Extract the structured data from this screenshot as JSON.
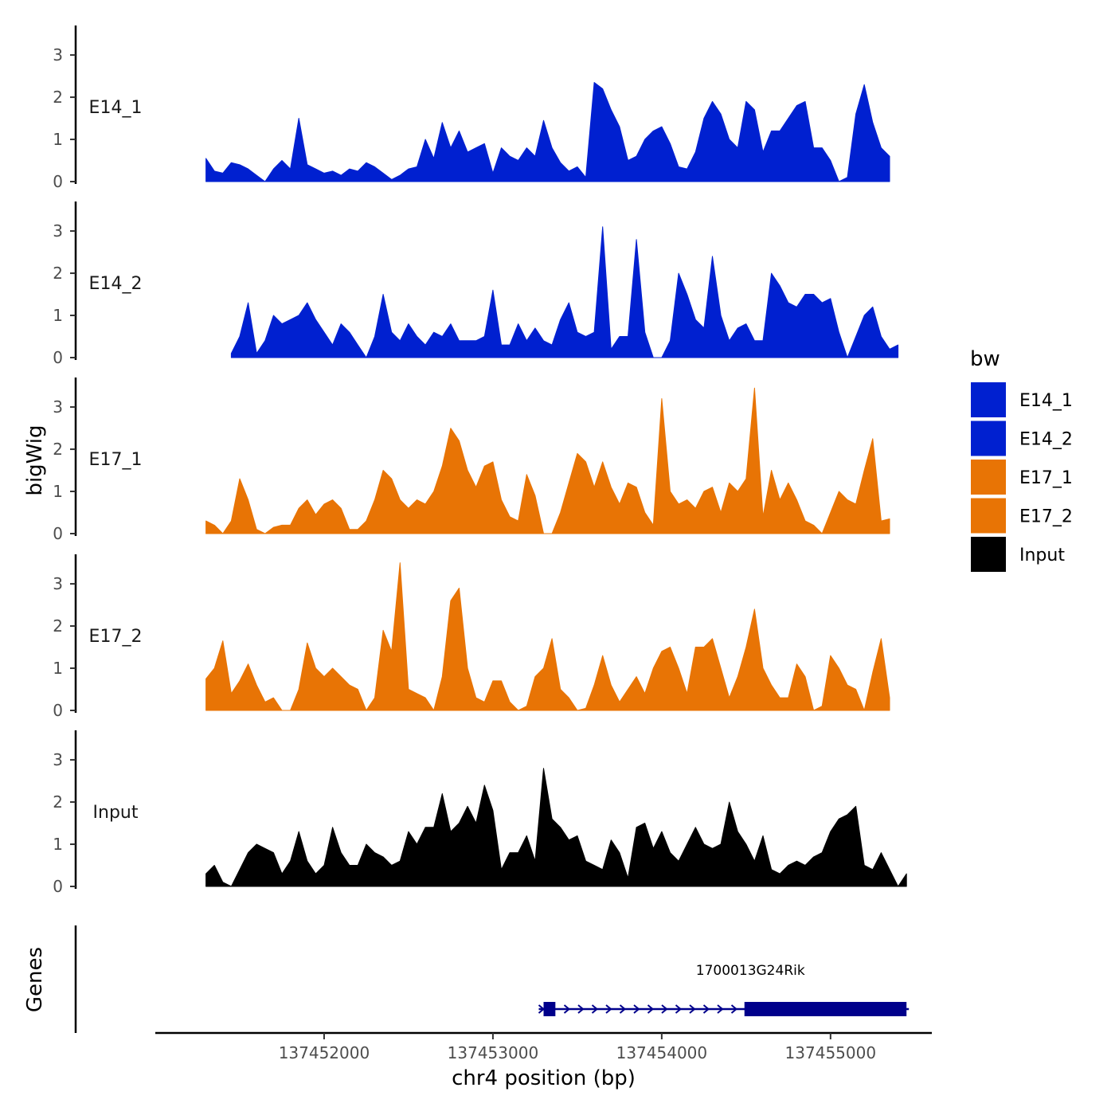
{
  "chart_data": {
    "type": "area",
    "ylabel": "bigWig",
    "xlabel": "chr4 position (bp)",
    "ylim": [
      0,
      3.7
    ],
    "yticks": [
      0,
      1,
      2,
      3
    ],
    "xlim": [
      137451000,
      137455600
    ],
    "xticks": [
      137452000,
      137453000,
      137454000,
      137455000
    ],
    "x_start": 137451300,
    "x_step": 50,
    "legend": {
      "title": "bw",
      "position": "right",
      "entries": [
        {
          "label": "E14_1",
          "color": "#0020D0"
        },
        {
          "label": "E14_2",
          "color": "#0020D0"
        },
        {
          "label": "E17_1",
          "color": "#E87405"
        },
        {
          "label": "E17_2",
          "color": "#E87405"
        },
        {
          "label": "Input",
          "color": "#000000"
        }
      ]
    },
    "series": [
      {
        "name": "E14_1",
        "color": "#0020D0",
        "values": [
          0.55,
          0.25,
          0.2,
          0.45,
          0.4,
          0.3,
          0.15,
          0.0,
          0.3,
          0.5,
          0.3,
          1.5,
          0.4,
          0.3,
          0.2,
          0.25,
          0.15,
          0.3,
          0.25,
          0.45,
          0.35,
          0.2,
          0.05,
          0.15,
          0.3,
          0.35,
          1.0,
          0.55,
          1.4,
          0.8,
          1.2,
          0.7,
          0.8,
          0.9,
          0.2,
          0.8,
          0.6,
          0.5,
          0.8,
          0.6,
          1.45,
          0.8,
          0.45,
          0.25,
          0.35,
          0.1,
          2.35,
          2.2,
          1.7,
          1.3,
          0.5,
          0.6,
          1.0,
          1.2,
          1.3,
          0.9,
          0.35,
          0.3,
          0.7,
          1.5,
          1.9,
          1.6,
          1.0,
          0.8,
          1.9,
          1.7,
          0.7,
          1.2,
          1.2,
          1.5,
          1.8,
          1.9,
          0.8,
          0.8,
          0.5,
          0.0,
          0.1,
          1.6,
          2.3,
          1.4,
          0.8,
          0.6
        ]
      },
      {
        "name": "E14_2",
        "color": "#0020D0",
        "values": [
          null,
          null,
          null,
          0.1,
          0.5,
          1.3,
          0.1,
          0.4,
          1.0,
          0.8,
          0.9,
          1.0,
          1.3,
          0.9,
          0.6,
          0.3,
          0.8,
          0.6,
          0.3,
          0.0,
          0.5,
          1.5,
          0.6,
          0.4,
          0.8,
          0.5,
          0.3,
          0.6,
          0.5,
          0.8,
          0.4,
          0.4,
          0.4,
          0.5,
          1.6,
          0.3,
          0.3,
          0.8,
          0.4,
          0.7,
          0.4,
          0.3,
          0.9,
          1.3,
          0.6,
          0.5,
          0.6,
          3.1,
          0.2,
          0.5,
          0.5,
          2.8,
          0.6,
          0.0,
          0.0,
          0.4,
          2.0,
          1.5,
          0.9,
          0.7,
          2.4,
          1.0,
          0.4,
          0.7,
          0.8,
          0.4,
          0.4,
          2.0,
          1.7,
          1.3,
          1.2,
          1.5,
          1.5,
          1.3,
          1.4,
          0.6,
          0.0,
          0.5,
          1.0,
          1.2,
          0.5,
          0.2,
          0.3
        ]
      },
      {
        "name": "E17_1",
        "color": "#E87405",
        "values": [
          0.3,
          0.2,
          0.0,
          0.3,
          1.3,
          0.8,
          0.1,
          0.0,
          0.15,
          0.2,
          0.2,
          0.6,
          0.8,
          0.45,
          0.7,
          0.8,
          0.6,
          0.1,
          0.1,
          0.3,
          0.8,
          1.5,
          1.3,
          0.8,
          0.6,
          0.8,
          0.7,
          1.0,
          1.6,
          2.5,
          2.2,
          1.5,
          1.1,
          1.6,
          1.7,
          0.8,
          0.4,
          0.3,
          1.4,
          0.9,
          0.0,
          0.0,
          0.5,
          1.2,
          1.9,
          1.7,
          1.1,
          1.7,
          1.1,
          0.7,
          1.2,
          1.1,
          0.5,
          0.2,
          3.2,
          1.0,
          0.7,
          0.8,
          0.6,
          1.0,
          1.1,
          0.5,
          1.2,
          1.0,
          1.3,
          3.45,
          0.4,
          1.5,
          0.8,
          1.2,
          0.8,
          0.3,
          0.2,
          0.0,
          0.5,
          1.0,
          0.8,
          0.7,
          1.5,
          2.25,
          0.3,
          0.35
        ]
      },
      {
        "name": "E17_2",
        "color": "#E87405",
        "values": [
          0.75,
          1.0,
          1.65,
          0.4,
          0.7,
          1.1,
          0.6,
          0.2,
          0.3,
          0.0,
          0.0,
          0.5,
          1.6,
          1.0,
          0.8,
          1.0,
          0.8,
          0.6,
          0.5,
          0.0,
          0.3,
          1.9,
          1.4,
          3.5,
          0.5,
          0.4,
          0.3,
          0.0,
          0.8,
          2.6,
          2.9,
          1.0,
          0.3,
          0.2,
          0.7,
          0.7,
          0.2,
          0.0,
          0.1,
          0.8,
          1.0,
          1.7,
          0.5,
          0.3,
          0.0,
          0.05,
          0.6,
          1.3,
          0.6,
          0.2,
          0.5,
          0.8,
          0.4,
          1.0,
          1.4,
          1.5,
          1.0,
          0.4,
          1.5,
          1.5,
          1.7,
          1.0,
          0.3,
          0.8,
          1.5,
          2.4,
          1.0,
          0.6,
          0.3,
          0.3,
          1.1,
          0.8,
          0.0,
          0.1,
          1.3,
          1.0,
          0.6,
          0.5,
          0.0,
          0.9,
          1.7,
          0.3
        ]
      },
      {
        "name": "Input",
        "color": "#000000",
        "values": [
          0.3,
          0.5,
          0.1,
          0.0,
          0.4,
          0.8,
          1.0,
          0.9,
          0.8,
          0.3,
          0.6,
          1.3,
          0.6,
          0.3,
          0.5,
          1.4,
          0.8,
          0.5,
          0.5,
          1.0,
          0.8,
          0.7,
          0.5,
          0.6,
          1.3,
          1.0,
          1.4,
          1.4,
          2.2,
          1.3,
          1.5,
          1.9,
          1.5,
          2.4,
          1.8,
          0.4,
          0.8,
          0.8,
          1.2,
          0.6,
          2.8,
          1.6,
          1.4,
          1.1,
          1.2,
          0.6,
          0.5,
          0.4,
          1.1,
          0.8,
          0.2,
          1.4,
          1.5,
          0.9,
          1.3,
          0.8,
          0.6,
          1.0,
          1.4,
          1.0,
          0.9,
          1.0,
          2.0,
          1.3,
          1.0,
          0.6,
          1.2,
          0.4,
          0.3,
          0.5,
          0.6,
          0.5,
          0.7,
          0.8,
          1.3,
          1.6,
          1.7,
          1.9,
          0.5,
          0.4,
          0.8,
          0.4,
          0.0,
          0.3
        ]
      }
    ],
    "gene_track": {
      "label": "Genes",
      "gene_name": "1700013G24Rik",
      "strand": "+",
      "start": 137453300,
      "end": 137455450,
      "exons": [
        [
          137453300,
          137453370
        ],
        [
          137454490,
          137455450
        ]
      ],
      "color": "#00008B"
    }
  }
}
